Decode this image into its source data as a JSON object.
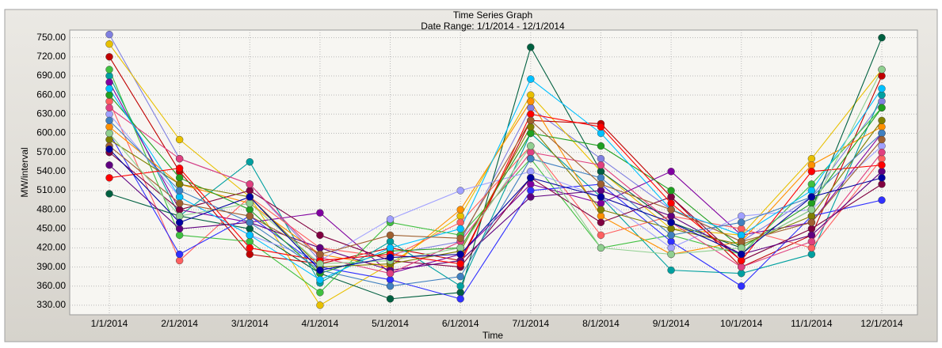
{
  "chart_data": {
    "type": "line",
    "title": "Time Series Graph",
    "subtitle": "Date Range: 1/1/2014 - 12/1/2014",
    "x_label": "Time",
    "y_label": "MW/interval",
    "grid": true,
    "markers": true,
    "categories": [
      "1/1/2014",
      "2/1/2014",
      "3/1/2014",
      "4/1/2014",
      "5/1/2014",
      "6/1/2014",
      "7/1/2014",
      "8/1/2014",
      "9/1/2014",
      "10/1/2014",
      "11/1/2014",
      "12/1/2014"
    ],
    "ylim": [
      315,
      762
    ],
    "yticks": [
      {
        "value": 330,
        "label": "330.00"
      },
      {
        "value": 360,
        "label": "360.00"
      },
      {
        "value": 390,
        "label": "390.00"
      },
      {
        "value": 420,
        "label": "420.00"
      },
      {
        "value": 450,
        "label": "450.00"
      },
      {
        "value": 480,
        "label": "480.00"
      },
      {
        "value": 510,
        "label": "510.00"
      },
      {
        "value": 540,
        "label": "540.00"
      },
      {
        "value": 570,
        "label": "570.00"
      },
      {
        "value": 600,
        "label": "600.00"
      },
      {
        "value": 630,
        "label": "630.00"
      },
      {
        "value": 660,
        "label": "660.00"
      },
      {
        "value": 690,
        "label": "690.00"
      },
      {
        "value": 720,
        "label": "720.00"
      },
      {
        "value": 750,
        "label": "750.00"
      }
    ],
    "series": [
      {
        "color": "#8080e0",
        "values": [
          755,
          560,
          520,
          400,
          410,
          430,
          640,
          560,
          480,
          430,
          500,
          650
        ]
      },
      {
        "color": "#e8c000",
        "values": [
          740,
          590,
          500,
          330,
          395,
          470,
          660,
          540,
          450,
          440,
          560,
          700
        ]
      },
      {
        "color": "#006040",
        "values": [
          505,
          470,
          450,
          380,
          340,
          350,
          735,
          540,
          460,
          420,
          480,
          750
        ]
      },
      {
        "color": "#c00000",
        "values": [
          720,
          540,
          410,
          395,
          420,
          400,
          620,
          615,
          500,
          390,
          440,
          690
        ]
      },
      {
        "color": "#00a0a0",
        "values": [
          690,
          470,
          555,
          365,
          430,
          360,
          600,
          500,
          385,
          380,
          410,
          660
        ]
      },
      {
        "color": "#8000a0",
        "values": [
          680,
          480,
          460,
          475,
          380,
          410,
          520,
          490,
          540,
          440,
          460,
          600
        ]
      },
      {
        "color": "#ff6060",
        "values": [
          650,
          400,
          500,
          420,
          405,
          460,
          580,
          440,
          470,
          450,
          420,
          560
        ]
      },
      {
        "color": "#40c040",
        "values": [
          700,
          440,
          430,
          350,
          460,
          440,
          560,
          420,
          440,
          410,
          520,
          640
        ]
      },
      {
        "color": "#3030ff",
        "values": [
          600,
          410,
          470,
          390,
          370,
          340,
          510,
          520,
          430,
          360,
          470,
          495
        ]
      },
      {
        "color": "#ff9000",
        "values": [
          610,
          520,
          490,
          410,
          390,
          480,
          650,
          470,
          410,
          430,
          550,
          610
        ]
      },
      {
        "color": "#a0a0ff",
        "values": [
          630,
          500,
          440,
          400,
          465,
          510,
          540,
          500,
          420,
          470,
          480,
          580
        ]
      },
      {
        "color": "#800040",
        "values": [
          570,
          480,
          510,
          440,
          400,
          390,
          530,
          460,
          500,
          400,
          450,
          520
        ]
      },
      {
        "color": "#20a020",
        "values": [
          660,
          530,
          480,
          380,
          415,
          420,
          600,
          580,
          510,
          420,
          490,
          640
        ]
      },
      {
        "color": "#600080",
        "values": [
          550,
          450,
          460,
          420,
          385,
          400,
          500,
          510,
          470,
          410,
          440,
          540
        ]
      },
      {
        "color": "#e04080",
        "values": [
          640,
          560,
          520,
          405,
          380,
          430,
          570,
          550,
          460,
          390,
          430,
          570
        ]
      },
      {
        "color": "#00c0ff",
        "values": [
          670,
          500,
          440,
          370,
          420,
          450,
          685,
          600,
          480,
          440,
          510,
          670
        ]
      },
      {
        "color": "#808000",
        "values": [
          590,
          520,
          500,
          390,
          395,
          415,
          610,
          480,
          450,
          425,
          470,
          620
        ]
      },
      {
        "color": "#ff0000",
        "values": [
          530,
          545,
          420,
          400,
          410,
          395,
          630,
          610,
          490,
          400,
          540,
          550
        ]
      },
      {
        "color": "#4080c0",
        "values": [
          620,
          510,
          460,
          385,
          360,
          375,
          560,
          530,
          440,
          460,
          500,
          600
        ]
      },
      {
        "color": "#a06030",
        "values": [
          580,
          490,
          470,
          410,
          440,
          435,
          620,
          520,
          480,
          430,
          460,
          590
        ]
      },
      {
        "color": "#90d090",
        "values": [
          600,
          470,
          490,
          395,
          400,
          420,
          580,
          420,
          410,
          420,
          480,
          700
        ]
      },
      {
        "color": "#0000a0",
        "values": [
          575,
          460,
          500,
          385,
          405,
          410,
          530,
          500,
          460,
          410,
          500,
          530
        ]
      }
    ]
  }
}
